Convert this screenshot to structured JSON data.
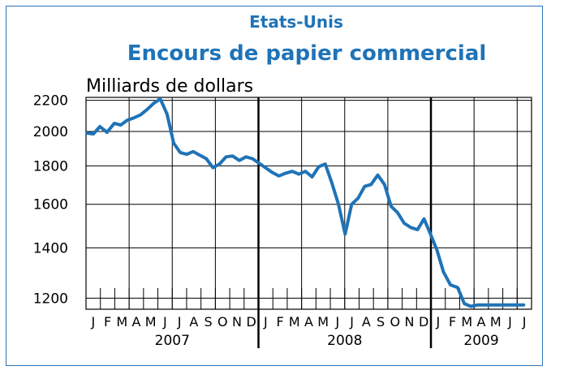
{
  "chart_data": {
    "type": "line",
    "title": "Etats-Unis",
    "subtitle": "Encours de papier commercial",
    "ylabel": "Milliards de dollars",
    "ylim": [
      1160,
      2220
    ],
    "y_scale": "log",
    "yticks": [
      "2200",
      "2000",
      "1800",
      "1600",
      "1400",
      "1200"
    ],
    "months": [
      "J",
      "F",
      "M",
      "A",
      "M",
      "J",
      "J",
      "A",
      "S",
      "O",
      "N",
      "D",
      "J",
      "F",
      "M",
      "A",
      "M",
      "J",
      "J",
      "A",
      "S",
      "O",
      "N",
      "D",
      "J",
      "F",
      "M",
      "A",
      "M",
      "J",
      "J"
    ],
    "years": [
      "2007",
      "2008",
      "2009"
    ],
    "grid": true,
    "series": [
      {
        "color": "#1f73b7",
        "x": [
          "2007-01-03",
          "2007-01-17",
          "2007-01-31",
          "2007-02-14",
          "2007-02-28",
          "2007-03-14",
          "2007-03-28",
          "2007-04-11",
          "2007-04-25",
          "2007-05-09",
          "2007-05-23",
          "2007-06-06",
          "2007-06-20",
          "2007-07-04",
          "2007-07-18",
          "2007-08-01",
          "2007-08-15",
          "2007-08-29",
          "2007-09-12",
          "2007-09-26",
          "2007-10-10",
          "2007-10-24",
          "2007-11-07",
          "2007-11-21",
          "2007-12-05",
          "2007-12-19",
          "2008-01-02",
          "2008-01-16",
          "2008-01-30",
          "2008-02-13",
          "2008-02-27",
          "2008-03-12",
          "2008-03-26",
          "2008-04-09",
          "2008-04-23",
          "2008-05-07",
          "2008-05-21",
          "2008-06-04",
          "2008-06-18",
          "2008-07-02",
          "2008-07-16",
          "2008-07-30",
          "2008-08-13",
          "2008-08-27",
          "2008-09-10",
          "2008-09-24",
          "2008-10-08",
          "2008-10-22",
          "2008-11-05",
          "2008-11-19",
          "2008-12-03",
          "2008-12-17",
          "2008-12-31",
          "2009-01-14",
          "2009-01-28",
          "2009-02-11",
          "2009-02-25",
          "2009-03-11",
          "2009-03-25",
          "2009-04-08",
          "2009-04-22",
          "2009-05-06",
          "2009-05-20",
          "2009-06-03",
          "2009-06-17",
          "2009-07-01",
          "2009-07-15"
        ],
        "values": [
          1990,
          1985,
          2030,
          1995,
          2050,
          2040,
          2070,
          2085,
          2105,
          2140,
          2180,
          2210,
          2110,
          1930,
          1875,
          1865,
          1880,
          1860,
          1840,
          1790,
          1810,
          1850,
          1855,
          1830,
          1850,
          1840,
          1815,
          1790,
          1765,
          1745,
          1760,
          1770,
          1755,
          1770,
          1740,
          1795,
          1810,
          1710,
          1600,
          1460,
          1600,
          1630,
          1690,
          1700,
          1750,
          1700,
          1590,
          1560,
          1510,
          1490,
          1480,
          1530,
          1460,
          1390,
          1300,
          1250,
          1240,
          1180,
          1170,
          1175,
          1175,
          1175,
          1175,
          1175,
          1175,
          1175,
          1175
        ]
      }
    ]
  }
}
